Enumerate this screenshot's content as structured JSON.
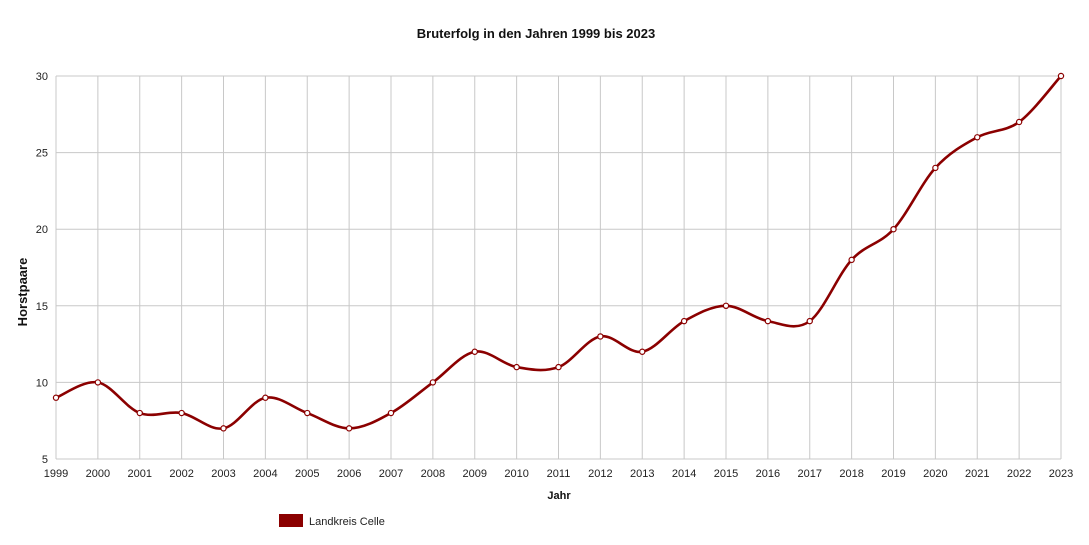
{
  "chart_data": {
    "type": "line",
    "title": "Bruterfolg in den Jahren 1999 bis 2023",
    "xlabel": "Jahr",
    "ylabel": "Horstpaare",
    "x": [
      "1999",
      "2000",
      "2001",
      "2002",
      "2003",
      "2004",
      "2005",
      "2006",
      "2007",
      "2008",
      "2009",
      "2010",
      "2011",
      "2012",
      "2013",
      "2014",
      "2015",
      "2016",
      "2017",
      "2018",
      "2019",
      "2020",
      "2021",
      "2022",
      "2023"
    ],
    "ylim": [
      5,
      30
    ],
    "yticks": [
      5,
      10,
      15,
      20,
      25,
      30
    ],
    "grid": true,
    "legend": "bottom-left",
    "series": [
      {
        "name": "Landkreis Celle",
        "color": "#8b0000",
        "values": [
          9,
          10,
          8,
          8,
          7,
          9,
          8,
          7,
          8,
          10,
          12,
          11,
          11,
          13,
          12,
          14,
          15,
          14,
          14,
          18,
          20,
          24,
          26,
          27,
          30
        ]
      }
    ]
  }
}
